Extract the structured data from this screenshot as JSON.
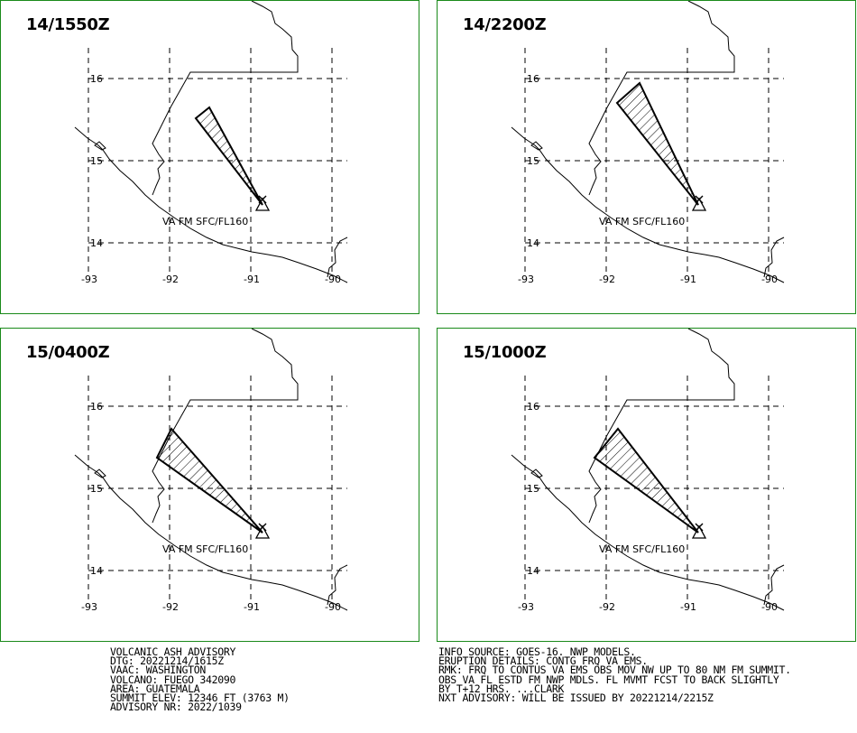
{
  "panels": [
    {
      "time": "14/1550Z",
      "va_label": "VA FM SFC/FL160",
      "plume": "narrow"
    },
    {
      "time": "14/2200Z",
      "va_label": "VA FM SFC/FL160",
      "plume": "mid"
    },
    {
      "time": "15/0400Z",
      "va_label": "VA FM SFC/FL160",
      "plume": "wide"
    },
    {
      "time": "15/1000Z",
      "va_label": "VA FM SFC/FL160",
      "plume": "wide2"
    }
  ],
  "map": {
    "lon_labels": [
      "-93",
      "-92",
      "-91",
      "-90"
    ],
    "lat_labels": [
      "16",
      "15",
      "14"
    ],
    "grid": "dashed",
    "volcano_symbol": "triangle-icon",
    "colors": {
      "frame": "#1a8a1a",
      "lines": "#000000"
    }
  },
  "advisory_left": [
    "VOLCANIC ASH ADVISORY",
    "DTG: 20221214/1615Z",
    "VAAC: WASHINGTON",
    "VOLCANO: FUEGO 342090",
    "AREA: GUATEMALA",
    "SUMMIT ELEV: 12346 FT (3763 M)",
    "ADVISORY NR: 2022/1039"
  ],
  "advisory_right": [
    "INFO SOURCE: GOES-16. NWP MODELS.",
    "ERUPTION DETAILS: CONTG FRQ VA EMS.",
    "RMK: FRQ TO CONTUS VA EMS OBS MOV NW UP TO 80 NM FM SUMMIT.",
    "OBS VA FL ESTD FM NWP MDLS. FL MVMT FCST TO BACK SLIGHTLY",
    "BY T+12 HRS. ...CLARK",
    "NXT ADVISORY: WILL BE ISSUED BY 20221214/2215Z"
  ]
}
